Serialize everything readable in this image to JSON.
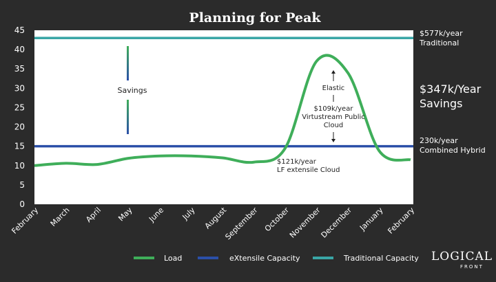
{
  "chart_data": {
    "type": "line",
    "title": "Planning for Peak",
    "categories": [
      "February",
      "March",
      "April",
      "May",
      "June",
      "July",
      "August",
      "September",
      "October",
      "November",
      "December",
      "January",
      "February"
    ],
    "ylim": [
      0,
      45
    ],
    "yticks": [
      0,
      5,
      10,
      15,
      20,
      25,
      30,
      35,
      40,
      45
    ],
    "grid": false,
    "legend_placement": "bottom",
    "series": [
      {
        "name": "Load",
        "color": "#3fae5a",
        "values": [
          10,
          10.6,
          10.3,
          11.9,
          12.5,
          12.5,
          12,
          10.9,
          14.5,
          37,
          34,
          13.8,
          11.5
        ]
      },
      {
        "name": "eXtensile Capacity",
        "color": "#2b4fa8",
        "values": [
          15,
          15,
          15,
          15,
          15,
          15,
          15,
          15,
          15,
          15,
          15,
          15,
          15
        ]
      },
      {
        "name": "Traditional Capacity",
        "color": "#39a6a6",
        "values": [
          43,
          43,
          43,
          43,
          43,
          43,
          43,
          43,
          43,
          43,
          43,
          43,
          43
        ]
      }
    ],
    "annotations": {
      "savings": "Savings",
      "elastic": "Elastic",
      "virtustream": [
        "$109k/year",
        "Virtustream Public",
        "Cloud"
      ],
      "lf": [
        "$121k/year",
        "LF extensile Cloud"
      ]
    },
    "right_labels": {
      "traditional": [
        "$577k/year",
        "Traditional"
      ],
      "savings": [
        "$347k/Year",
        "Savings"
      ],
      "hybrid": [
        "230k/year",
        "Combined Hybrid"
      ]
    }
  },
  "logo": {
    "main": "LOGICAL",
    "sub": "FRONT"
  }
}
